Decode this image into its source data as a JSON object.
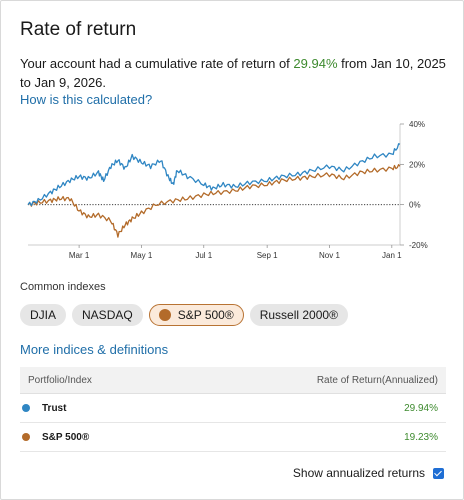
{
  "header": {
    "title": "Rate of return"
  },
  "summary": {
    "prefix": "Your account had a cumulative rate of return of ",
    "percent": "29.94%",
    "suffix": " from Jan 10, 2025 to Jan 9, 2026."
  },
  "links": {
    "how_calculated": "How is this calculated?",
    "more_indices": "More indices & definitions"
  },
  "colors": {
    "trust": "#2f86c3",
    "sp500": "#b36b2a",
    "positive": "#3d8a2e",
    "link": "#1f6ea8"
  },
  "chart_data": {
    "type": "line",
    "x_ticks": [
      "Mar 1",
      "May 1",
      "Jul 1",
      "Sep 1",
      "Nov 1",
      "Jan 1"
    ],
    "y_ticks": [
      "40%",
      "20%",
      "0%",
      "-20%"
    ],
    "ylim": [
      -20,
      40
    ],
    "x_range": [
      "2025-01-10",
      "2026-01-09"
    ],
    "zero_line": "dotted",
    "series": [
      {
        "name": "Trust",
        "color": "#2f86c3",
        "points": [
          [
            "2025-01-10",
            0
          ],
          [
            "2025-01-20",
            2
          ],
          [
            "2025-02-01",
            6
          ],
          [
            "2025-02-10",
            9
          ],
          [
            "2025-02-20",
            12
          ],
          [
            "2025-03-01",
            14
          ],
          [
            "2025-03-10",
            13
          ],
          [
            "2025-03-20",
            16
          ],
          [
            "2025-03-25",
            12
          ],
          [
            "2025-04-01",
            19
          ],
          [
            "2025-04-08",
            22
          ],
          [
            "2025-04-15",
            18
          ],
          [
            "2025-04-22",
            24
          ],
          [
            "2025-05-01",
            21
          ],
          [
            "2025-05-10",
            19
          ],
          [
            "2025-05-20",
            22
          ],
          [
            "2025-05-27",
            14
          ],
          [
            "2025-06-01",
            10
          ],
          [
            "2025-06-05",
            17
          ],
          [
            "2025-06-15",
            14
          ],
          [
            "2025-07-01",
            10
          ],
          [
            "2025-07-10",
            8
          ],
          [
            "2025-07-20",
            10
          ],
          [
            "2025-08-01",
            9
          ],
          [
            "2025-08-15",
            11
          ],
          [
            "2025-09-01",
            12
          ],
          [
            "2025-09-15",
            14
          ],
          [
            "2025-10-01",
            15
          ],
          [
            "2025-10-15",
            17
          ],
          [
            "2025-11-01",
            19
          ],
          [
            "2025-11-15",
            17
          ],
          [
            "2025-12-01",
            21
          ],
          [
            "2025-12-15",
            24
          ],
          [
            "2026-01-01",
            25
          ],
          [
            "2026-01-09",
            30
          ]
        ]
      },
      {
        "name": "S&P 500®",
        "color": "#b36b2a",
        "points": [
          [
            "2025-01-10",
            0
          ],
          [
            "2025-01-20",
            1
          ],
          [
            "2025-02-01",
            2
          ],
          [
            "2025-02-10",
            3
          ],
          [
            "2025-02-20",
            3
          ],
          [
            "2025-03-01",
            -3
          ],
          [
            "2025-03-10",
            -6
          ],
          [
            "2025-03-20",
            -5
          ],
          [
            "2025-04-01",
            -8
          ],
          [
            "2025-04-08",
            -15
          ],
          [
            "2025-04-15",
            -10
          ],
          [
            "2025-04-22",
            -7
          ],
          [
            "2025-05-01",
            -4
          ],
          [
            "2025-05-15",
            0
          ],
          [
            "2025-06-01",
            2
          ],
          [
            "2025-06-15",
            3
          ],
          [
            "2025-07-01",
            5
          ],
          [
            "2025-07-15",
            6
          ],
          [
            "2025-08-01",
            7
          ],
          [
            "2025-08-15",
            9
          ],
          [
            "2025-09-01",
            10
          ],
          [
            "2025-09-15",
            12
          ],
          [
            "2025-10-01",
            13
          ],
          [
            "2025-10-15",
            14
          ],
          [
            "2025-11-01",
            15
          ],
          [
            "2025-11-15",
            13
          ],
          [
            "2025-12-01",
            16
          ],
          [
            "2025-12-15",
            17
          ],
          [
            "2026-01-01",
            18
          ],
          [
            "2026-01-09",
            19
          ]
        ]
      }
    ]
  },
  "indexes": {
    "label": "Common indexes",
    "chips": [
      {
        "label": "DJIA",
        "selected": false
      },
      {
        "label": "NASDAQ",
        "selected": false
      },
      {
        "label": "S&P 500®",
        "selected": true
      },
      {
        "label": "Russell 2000®",
        "selected": false
      }
    ]
  },
  "table": {
    "headers": [
      "Portfolio/Index",
      "Rate of Return(Annualized)"
    ],
    "rows": [
      {
        "name": "Trust",
        "value": "29.94%",
        "color": "#2f86c3"
      },
      {
        "name": "S&P 500®",
        "value": "19.23%",
        "color": "#b36b2a"
      }
    ]
  },
  "footer": {
    "annualized_label": "Show annualized returns",
    "annualized_checked": true
  }
}
